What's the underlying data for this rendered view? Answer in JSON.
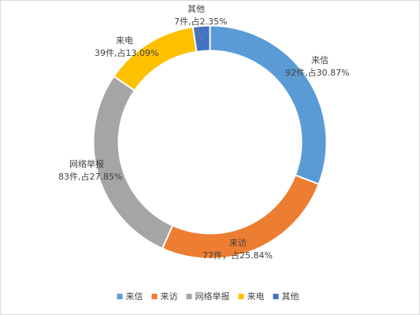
{
  "chart_data": {
    "type": "pie",
    "style": "donut",
    "title": "",
    "unit": "件",
    "series": [
      {
        "name": "来信",
        "value": 92,
        "percent": 30.87,
        "color": "#5b9bd5",
        "label": "92件,占30.87%"
      },
      {
        "name": "来访",
        "value": 77,
        "percent": 25.84,
        "color": "#ed7d31",
        "label": "77件，占25.84%"
      },
      {
        "name": "网络举报",
        "value": 83,
        "percent": 27.85,
        "color": "#a5a5a5",
        "label": "83件,占27.85%"
      },
      {
        "name": "来电",
        "value": 39,
        "percent": 13.09,
        "color": "#ffc000",
        "label": "39件,占13.09%"
      },
      {
        "name": "其他",
        "value": 7,
        "percent": 2.35,
        "color": "#4472c4",
        "label": "7件,占2.35%"
      }
    ],
    "legend_position": "bottom"
  }
}
